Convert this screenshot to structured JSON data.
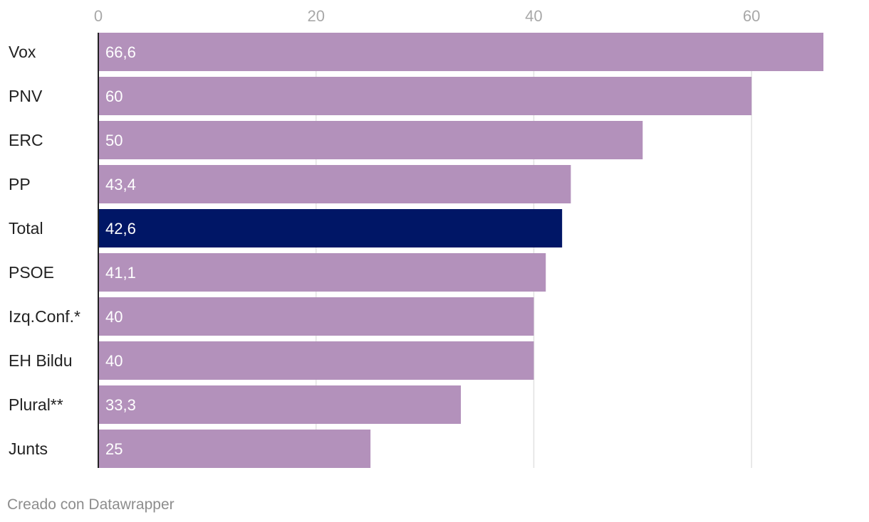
{
  "chart_data": {
    "type": "bar",
    "orientation": "horizontal",
    "categories": [
      "Vox",
      "PNV",
      "ERC",
      "PP",
      "Total",
      "PSOE",
      "Izq.Conf.*",
      "EH Bildu",
      "Plural**",
      "Junts"
    ],
    "values": [
      66.6,
      60,
      50,
      43.4,
      42.6,
      41.1,
      40,
      40,
      33.3,
      25
    ],
    "value_labels": [
      "66,6",
      "60",
      "50",
      "43,4",
      "42,6",
      "41,1",
      "40",
      "40",
      "33,3",
      "25"
    ],
    "highlight": "Total",
    "xlim": [
      0,
      66.6
    ],
    "xticks": [
      0,
      20,
      40,
      60
    ],
    "grid": true,
    "title": "",
    "xlabel": "",
    "ylabel": ""
  },
  "colors": {
    "bar": "#b391bb",
    "highlight": "#001666"
  },
  "credit": "Creado con Datawrapper"
}
